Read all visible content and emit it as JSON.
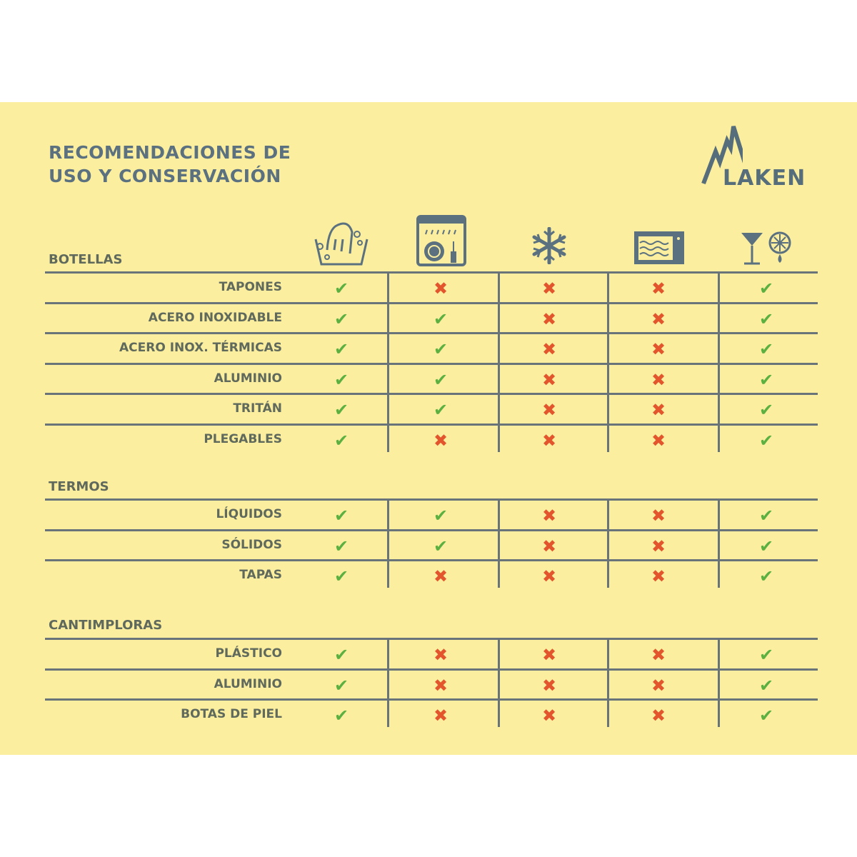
{
  "title": [
    "RECOMENDACIONES DE",
    "USO Y CONSERVACIÓN"
  ],
  "brand": "LAKEN",
  "colors": {
    "background": "#fbee9f",
    "text": "#5b7180",
    "check": "#5cb041",
    "cross": "#e2552d",
    "lines": "#68747a"
  },
  "columns": [
    {
      "icon": "hand-wash-icon"
    },
    {
      "icon": "dishwasher-icon"
    },
    {
      "icon": "freezer-snowflake-icon"
    },
    {
      "icon": "microwave-icon"
    },
    {
      "icon": "acidic-drinks-icon"
    }
  ],
  "symbols": {
    "yes": "✔",
    "no": "✖"
  },
  "sections": [
    {
      "label": "BOTELLAS",
      "rows": [
        {
          "label": "TAPONES",
          "values": [
            true,
            false,
            false,
            false,
            true
          ]
        },
        {
          "label": "ACERO INOXIDABLE",
          "values": [
            true,
            true,
            false,
            false,
            true
          ]
        },
        {
          "label": "ACERO INOX. TÉRMICAS",
          "values": [
            true,
            true,
            false,
            false,
            true
          ]
        },
        {
          "label": "ALUMINIO",
          "values": [
            true,
            true,
            false,
            false,
            true
          ]
        },
        {
          "label": "TRITÁN",
          "values": [
            true,
            true,
            false,
            false,
            true
          ]
        },
        {
          "label": "PLEGABLES",
          "values": [
            true,
            false,
            false,
            false,
            true
          ]
        }
      ]
    },
    {
      "label": "TERMOS",
      "rows": [
        {
          "label": "LÍQUIDOS",
          "values": [
            true,
            true,
            false,
            false,
            true
          ]
        },
        {
          "label": "SÓLIDOS",
          "values": [
            true,
            true,
            false,
            false,
            true
          ]
        },
        {
          "label": "TAPAS",
          "values": [
            true,
            false,
            false,
            false,
            true
          ]
        }
      ]
    },
    {
      "label": "CANTIMPLORAS",
      "rows": [
        {
          "label": "PLÁSTICO",
          "values": [
            true,
            false,
            false,
            false,
            true
          ]
        },
        {
          "label": "ALUMINIO",
          "values": [
            true,
            false,
            false,
            false,
            true
          ]
        },
        {
          "label": "BOTAS DE PIEL",
          "values": [
            true,
            false,
            false,
            false,
            true
          ]
        }
      ]
    }
  ]
}
